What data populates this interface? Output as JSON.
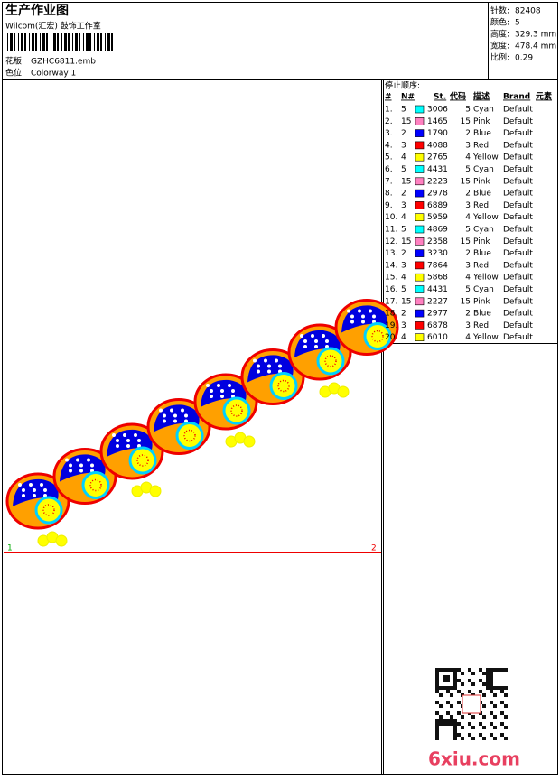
{
  "header": {
    "title": "生产作业图",
    "studio": "Wilcom(汇宏) 鼓饰工作室",
    "design_label": "花版:",
    "design_file": "GZHC6811.emb",
    "colorway_label": "色位:",
    "colorway": "Colorway 1"
  },
  "info": [
    {
      "label": "针数:",
      "value": "82408"
    },
    {
      "label": "颜色:",
      "value": "5"
    },
    {
      "label": "高度:",
      "value": "329.3 mm"
    },
    {
      "label": "宽度:",
      "value": "478.4 mm"
    },
    {
      "label": "比例:",
      "value": "0.29"
    }
  ],
  "stops": {
    "title": "停止顺序:",
    "headers": [
      "#",
      "N#",
      "St.",
      "代码",
      "描述",
      "Brand",
      "元素"
    ],
    "rows": [
      {
        "n": "1.",
        "needle": "5",
        "color": "#00ffff",
        "stitches": "3006",
        "code": "5",
        "desc": "Cyan",
        "brand": "Default"
      },
      {
        "n": "2.",
        "needle": "15",
        "color": "#ff80c0",
        "stitches": "1465",
        "code": "15",
        "desc": "Pink",
        "brand": "Default"
      },
      {
        "n": "3.",
        "needle": "2",
        "color": "#0000ff",
        "stitches": "1790",
        "code": "2",
        "desc": "Blue",
        "brand": "Default"
      },
      {
        "n": "4.",
        "needle": "3",
        "color": "#ff0000",
        "stitches": "4088",
        "code": "3",
        "desc": "Red",
        "brand": "Default"
      },
      {
        "n": "5.",
        "needle": "4",
        "color": "#ffff00",
        "stitches": "2765",
        "code": "4",
        "desc": "Yellow",
        "brand": "Default"
      },
      {
        "n": "6.",
        "needle": "5",
        "color": "#00ffff",
        "stitches": "4431",
        "code": "5",
        "desc": "Cyan",
        "brand": "Default"
      },
      {
        "n": "7.",
        "needle": "15",
        "color": "#ff80c0",
        "stitches": "2223",
        "code": "15",
        "desc": "Pink",
        "brand": "Default"
      },
      {
        "n": "8.",
        "needle": "2",
        "color": "#0000ff",
        "stitches": "2978",
        "code": "2",
        "desc": "Blue",
        "brand": "Default"
      },
      {
        "n": "9.",
        "needle": "3",
        "color": "#ff0000",
        "stitches": "6889",
        "code": "3",
        "desc": "Red",
        "brand": "Default"
      },
      {
        "n": "10.",
        "needle": "4",
        "color": "#ffff00",
        "stitches": "5959",
        "code": "4",
        "desc": "Yellow",
        "brand": "Default"
      },
      {
        "n": "11.",
        "needle": "5",
        "color": "#00ffff",
        "stitches": "4869",
        "code": "5",
        "desc": "Cyan",
        "brand": "Default"
      },
      {
        "n": "12.",
        "needle": "15",
        "color": "#ff80c0",
        "stitches": "2358",
        "code": "15",
        "desc": "Pink",
        "brand": "Default"
      },
      {
        "n": "13.",
        "needle": "2",
        "color": "#0000ff",
        "stitches": "3230",
        "code": "2",
        "desc": "Blue",
        "brand": "Default"
      },
      {
        "n": "14.",
        "needle": "3",
        "color": "#ff0000",
        "stitches": "7864",
        "code": "3",
        "desc": "Red",
        "brand": "Default"
      },
      {
        "n": "15.",
        "needle": "4",
        "color": "#ffff00",
        "stitches": "5868",
        "code": "4",
        "desc": "Yellow",
        "brand": "Default"
      },
      {
        "n": "16.",
        "needle": "5",
        "color": "#00ffff",
        "stitches": "4431",
        "code": "5",
        "desc": "Cyan",
        "brand": "Default"
      },
      {
        "n": "17.",
        "needle": "15",
        "color": "#ff80c0",
        "stitches": "2227",
        "code": "15",
        "desc": "Pink",
        "brand": "Default"
      },
      {
        "n": "18.",
        "needle": "2",
        "color": "#0000ff",
        "stitches": "2977",
        "code": "2",
        "desc": "Blue",
        "brand": "Default"
      },
      {
        "n": "19.",
        "needle": "3",
        "color": "#ff0000",
        "stitches": "6878",
        "code": "3",
        "desc": "Red",
        "brand": "Default"
      },
      {
        "n": "20.",
        "needle": "4",
        "color": "#ffff00",
        "stitches": "6010",
        "code": "4",
        "desc": "Yellow",
        "brand": "Default"
      }
    ]
  },
  "design": {
    "marker_start": "1",
    "marker_end": "2",
    "watermark": "6xiu.com"
  }
}
